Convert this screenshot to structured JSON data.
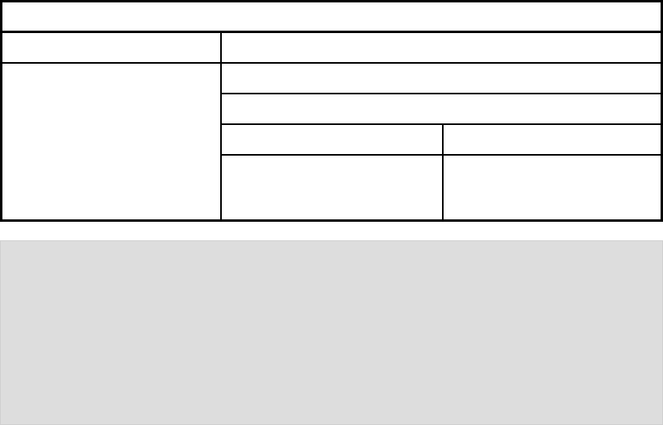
{
  "layout_table": {
    "title_cell": "",
    "row1": {
      "left": "",
      "right": ""
    },
    "row2": {
      "left": "",
      "right_rows": [
        "",
        ""
      ],
      "sub_grid": [
        [
          "",
          ""
        ],
        [
          "",
          ""
        ]
      ]
    }
  },
  "panel": {
    "background": "#dddddd",
    "content": ""
  }
}
